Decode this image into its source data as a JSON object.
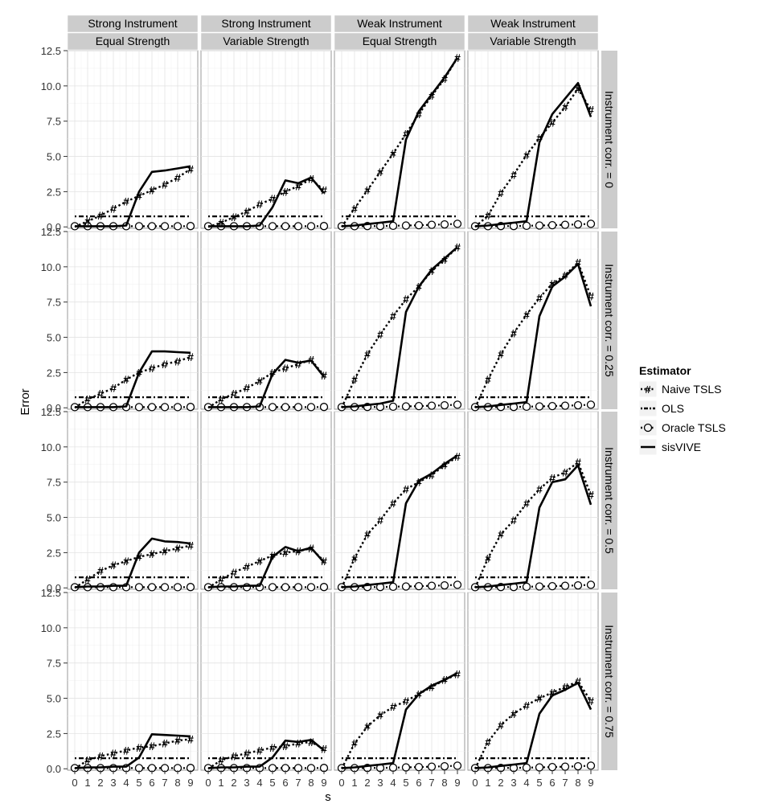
{
  "chart_data": {
    "type": "line",
    "title": "",
    "xlabel": "s",
    "ylabel": "Error",
    "x": [
      0,
      1,
      2,
      3,
      4,
      5,
      6,
      7,
      8,
      9
    ],
    "xlim": [
      0,
      9
    ],
    "ylim": [
      -0.1,
      12.5
    ],
    "x_ticks": [
      "0",
      "1",
      "2",
      "3",
      "4",
      "5",
      "6",
      "7",
      "8",
      "9"
    ],
    "y_ticks": [
      "0.0",
      "2.5",
      "5.0",
      "7.5",
      "10.0",
      "12.5"
    ],
    "grid": true,
    "legend_position": "right",
    "column_strips": [
      [
        "Strong Instrument",
        "Equal Strength"
      ],
      [
        "Strong Instrument",
        "Variable Strength"
      ],
      [
        "Weak Instrument",
        "Equal Strength"
      ],
      [
        "Weak Instrument",
        "Variable Strength"
      ]
    ],
    "row_strips": [
      "Instrument corr. = 0",
      "Instrument corr. = 0.25",
      "Instrument corr. = 0.5",
      "Instrument corr. = 0.75"
    ],
    "legend": {
      "title": "Estimator",
      "entries": [
        {
          "name": "Naive TSLS",
          "glyph": "#",
          "dash": "dotted"
        },
        {
          "name": "OLS",
          "glyph": "",
          "dash": "dotdash"
        },
        {
          "name": "Oracle TSLS",
          "glyph": "O",
          "dash": "dotted"
        },
        {
          "name": "sisVIVE",
          "glyph": "",
          "dash": "solid"
        }
      ]
    },
    "panels": [
      [
        {
          "naive": [
            0,
            0.4,
            0.8,
            1.3,
            1.8,
            2.2,
            2.6,
            3.0,
            3.5,
            4.1
          ],
          "ols": 0.75,
          "oracle": [
            0.05,
            0.05,
            0.05,
            0.05,
            0.05,
            0.05,
            0.05,
            0.05,
            0.05,
            0.06
          ],
          "sisvive": [
            0.05,
            0.05,
            0.05,
            0.05,
            0.1,
            2.5,
            3.9,
            4.0,
            4.15,
            4.3
          ]
        },
        {
          "naive": [
            0,
            0.3,
            0.7,
            1.1,
            1.6,
            2.0,
            2.5,
            2.9,
            3.4,
            2.6
          ],
          "ols": 0.75,
          "oracle": [
            0.05,
            0.05,
            0.05,
            0.05,
            0.05,
            0.05,
            0.05,
            0.05,
            0.05,
            0.06
          ],
          "sisvive": [
            0.05,
            0.05,
            0.05,
            0.05,
            0.1,
            1.4,
            3.3,
            3.1,
            3.5,
            2.4
          ]
        },
        {
          "naive": [
            0,
            1.3,
            2.6,
            3.9,
            5.2,
            6.6,
            8.0,
            9.3,
            10.5,
            12.0
          ],
          "ols": 0.75,
          "oracle": [
            0.05,
            0.05,
            0.06,
            0.06,
            0.08,
            0.1,
            0.12,
            0.15,
            0.18,
            0.22
          ],
          "sisvive": [
            0.05,
            0.1,
            0.2,
            0.3,
            0.4,
            6.2,
            8.2,
            9.4,
            10.6,
            12.0
          ]
        },
        {
          "naive": [
            0,
            0.8,
            2.4,
            3.7,
            5.1,
            6.3,
            7.4,
            8.5,
            9.8,
            8.3
          ],
          "ols": 0.75,
          "oracle": [
            0.05,
            0.05,
            0.06,
            0.06,
            0.08,
            0.1,
            0.12,
            0.15,
            0.18,
            0.22
          ],
          "sisvive": [
            0.05,
            0.1,
            0.2,
            0.3,
            0.4,
            6.0,
            8.0,
            9.1,
            10.2,
            7.8
          ]
        }
      ],
      [
        {
          "naive": [
            0,
            0.6,
            1.0,
            1.4,
            2.0,
            2.5,
            2.8,
            3.1,
            3.3,
            3.6
          ],
          "ols": 0.75,
          "oracle": [
            0.05,
            0.05,
            0.05,
            0.05,
            0.05,
            0.05,
            0.05,
            0.05,
            0.05,
            0.06
          ],
          "sisvive": [
            0.05,
            0.05,
            0.05,
            0.05,
            0.1,
            2.5,
            4.0,
            4.0,
            3.95,
            3.9
          ]
        },
        {
          "naive": [
            0,
            0.6,
            1.0,
            1.4,
            1.9,
            2.5,
            2.8,
            3.1,
            3.4,
            2.3
          ],
          "ols": 0.75,
          "oracle": [
            0.05,
            0.05,
            0.05,
            0.05,
            0.05,
            0.05,
            0.05,
            0.05,
            0.05,
            0.06
          ],
          "sisvive": [
            0.05,
            0.05,
            0.05,
            0.05,
            0.1,
            2.4,
            3.4,
            3.2,
            3.35,
            2.2
          ]
        },
        {
          "naive": [
            0,
            2.0,
            3.8,
            5.2,
            6.5,
            7.7,
            8.6,
            9.7,
            10.5,
            11.4
          ],
          "ols": 0.75,
          "oracle": [
            0.05,
            0.05,
            0.06,
            0.06,
            0.08,
            0.1,
            0.12,
            0.15,
            0.18,
            0.22
          ],
          "sisvive": [
            0.05,
            0.1,
            0.2,
            0.3,
            0.5,
            6.8,
            8.6,
            9.8,
            10.6,
            11.4
          ]
        },
        {
          "naive": [
            0,
            2.0,
            3.8,
            5.3,
            6.6,
            7.8,
            8.8,
            9.4,
            10.3,
            7.9
          ],
          "ols": 0.75,
          "oracle": [
            0.05,
            0.05,
            0.06,
            0.06,
            0.08,
            0.1,
            0.12,
            0.15,
            0.18,
            0.22
          ],
          "sisvive": [
            0.05,
            0.1,
            0.2,
            0.3,
            0.4,
            6.5,
            8.6,
            9.3,
            10.2,
            7.2
          ]
        }
      ],
      [
        {
          "naive": [
            0,
            0.6,
            1.2,
            1.6,
            1.9,
            2.2,
            2.4,
            2.6,
            2.8,
            3.0
          ],
          "ols": 0.75,
          "oracle": [
            0.05,
            0.05,
            0.05,
            0.05,
            0.05,
            0.05,
            0.05,
            0.05,
            0.05,
            0.06
          ],
          "sisvive": [
            0.05,
            0.1,
            0.1,
            0.15,
            0.15,
            2.5,
            3.5,
            3.3,
            3.25,
            3.15
          ]
        },
        {
          "naive": [
            0,
            0.6,
            1.1,
            1.5,
            1.9,
            2.3,
            2.5,
            2.6,
            2.8,
            1.9
          ],
          "ols": 0.75,
          "oracle": [
            0.05,
            0.05,
            0.05,
            0.05,
            0.05,
            0.05,
            0.05,
            0.05,
            0.05,
            0.06
          ],
          "sisvive": [
            0.05,
            0.1,
            0.1,
            0.15,
            0.15,
            2.2,
            2.9,
            2.6,
            2.85,
            1.8
          ]
        },
        {
          "naive": [
            0,
            2.1,
            3.8,
            4.8,
            6.0,
            7.0,
            7.5,
            8.0,
            8.7,
            9.3
          ],
          "ols": 0.75,
          "oracle": [
            0.05,
            0.05,
            0.06,
            0.06,
            0.08,
            0.1,
            0.12,
            0.15,
            0.18,
            0.22
          ],
          "sisvive": [
            0.05,
            0.1,
            0.2,
            0.3,
            0.4,
            6.0,
            7.6,
            8.1,
            8.8,
            9.4
          ]
        },
        {
          "naive": [
            0,
            2.1,
            3.8,
            4.8,
            6.0,
            7.0,
            7.8,
            8.2,
            8.9,
            6.6
          ],
          "ols": 0.75,
          "oracle": [
            0.05,
            0.05,
            0.06,
            0.06,
            0.08,
            0.1,
            0.12,
            0.15,
            0.18,
            0.22
          ],
          "sisvive": [
            0.05,
            0.1,
            0.2,
            0.3,
            0.4,
            5.7,
            7.5,
            7.7,
            8.7,
            5.9
          ]
        }
      ],
      [
        {
          "naive": [
            0,
            0.6,
            0.9,
            1.1,
            1.3,
            1.5,
            1.6,
            1.8,
            2.0,
            2.1
          ],
          "ols": 0.75,
          "oracle": [
            0.05,
            0.05,
            0.05,
            0.05,
            0.05,
            0.05,
            0.05,
            0.05,
            0.05,
            0.06
          ],
          "sisvive": [
            0.05,
            0.1,
            0.1,
            0.15,
            0.15,
            0.8,
            2.45,
            2.4,
            2.35,
            2.3
          ]
        },
        {
          "naive": [
            0,
            0.6,
            0.9,
            1.1,
            1.3,
            1.5,
            1.6,
            1.8,
            1.9,
            1.4
          ],
          "ols": 0.75,
          "oracle": [
            0.05,
            0.05,
            0.05,
            0.05,
            0.05,
            0.05,
            0.05,
            0.05,
            0.05,
            0.06
          ],
          "sisvive": [
            0.05,
            0.1,
            0.1,
            0.15,
            0.15,
            0.8,
            2.0,
            1.9,
            2.05,
            1.3
          ]
        },
        {
          "naive": [
            0,
            1.8,
            3.0,
            3.8,
            4.4,
            4.8,
            5.3,
            5.8,
            6.3,
            6.7
          ],
          "ols": 0.75,
          "oracle": [
            0.05,
            0.05,
            0.06,
            0.06,
            0.08,
            0.1,
            0.12,
            0.15,
            0.18,
            0.22
          ],
          "sisvive": [
            0.05,
            0.1,
            0.2,
            0.3,
            0.4,
            4.2,
            5.3,
            5.9,
            6.3,
            6.8
          ]
        },
        {
          "naive": [
            0,
            1.9,
            3.1,
            3.9,
            4.5,
            5.0,
            5.4,
            5.8,
            6.2,
            4.8
          ],
          "ols": 0.75,
          "oracle": [
            0.05,
            0.05,
            0.06,
            0.06,
            0.08,
            0.1,
            0.12,
            0.15,
            0.18,
            0.22
          ],
          "sisvive": [
            0.05,
            0.1,
            0.2,
            0.3,
            0.4,
            3.9,
            5.2,
            5.6,
            6.1,
            4.2
          ]
        }
      ]
    ]
  }
}
